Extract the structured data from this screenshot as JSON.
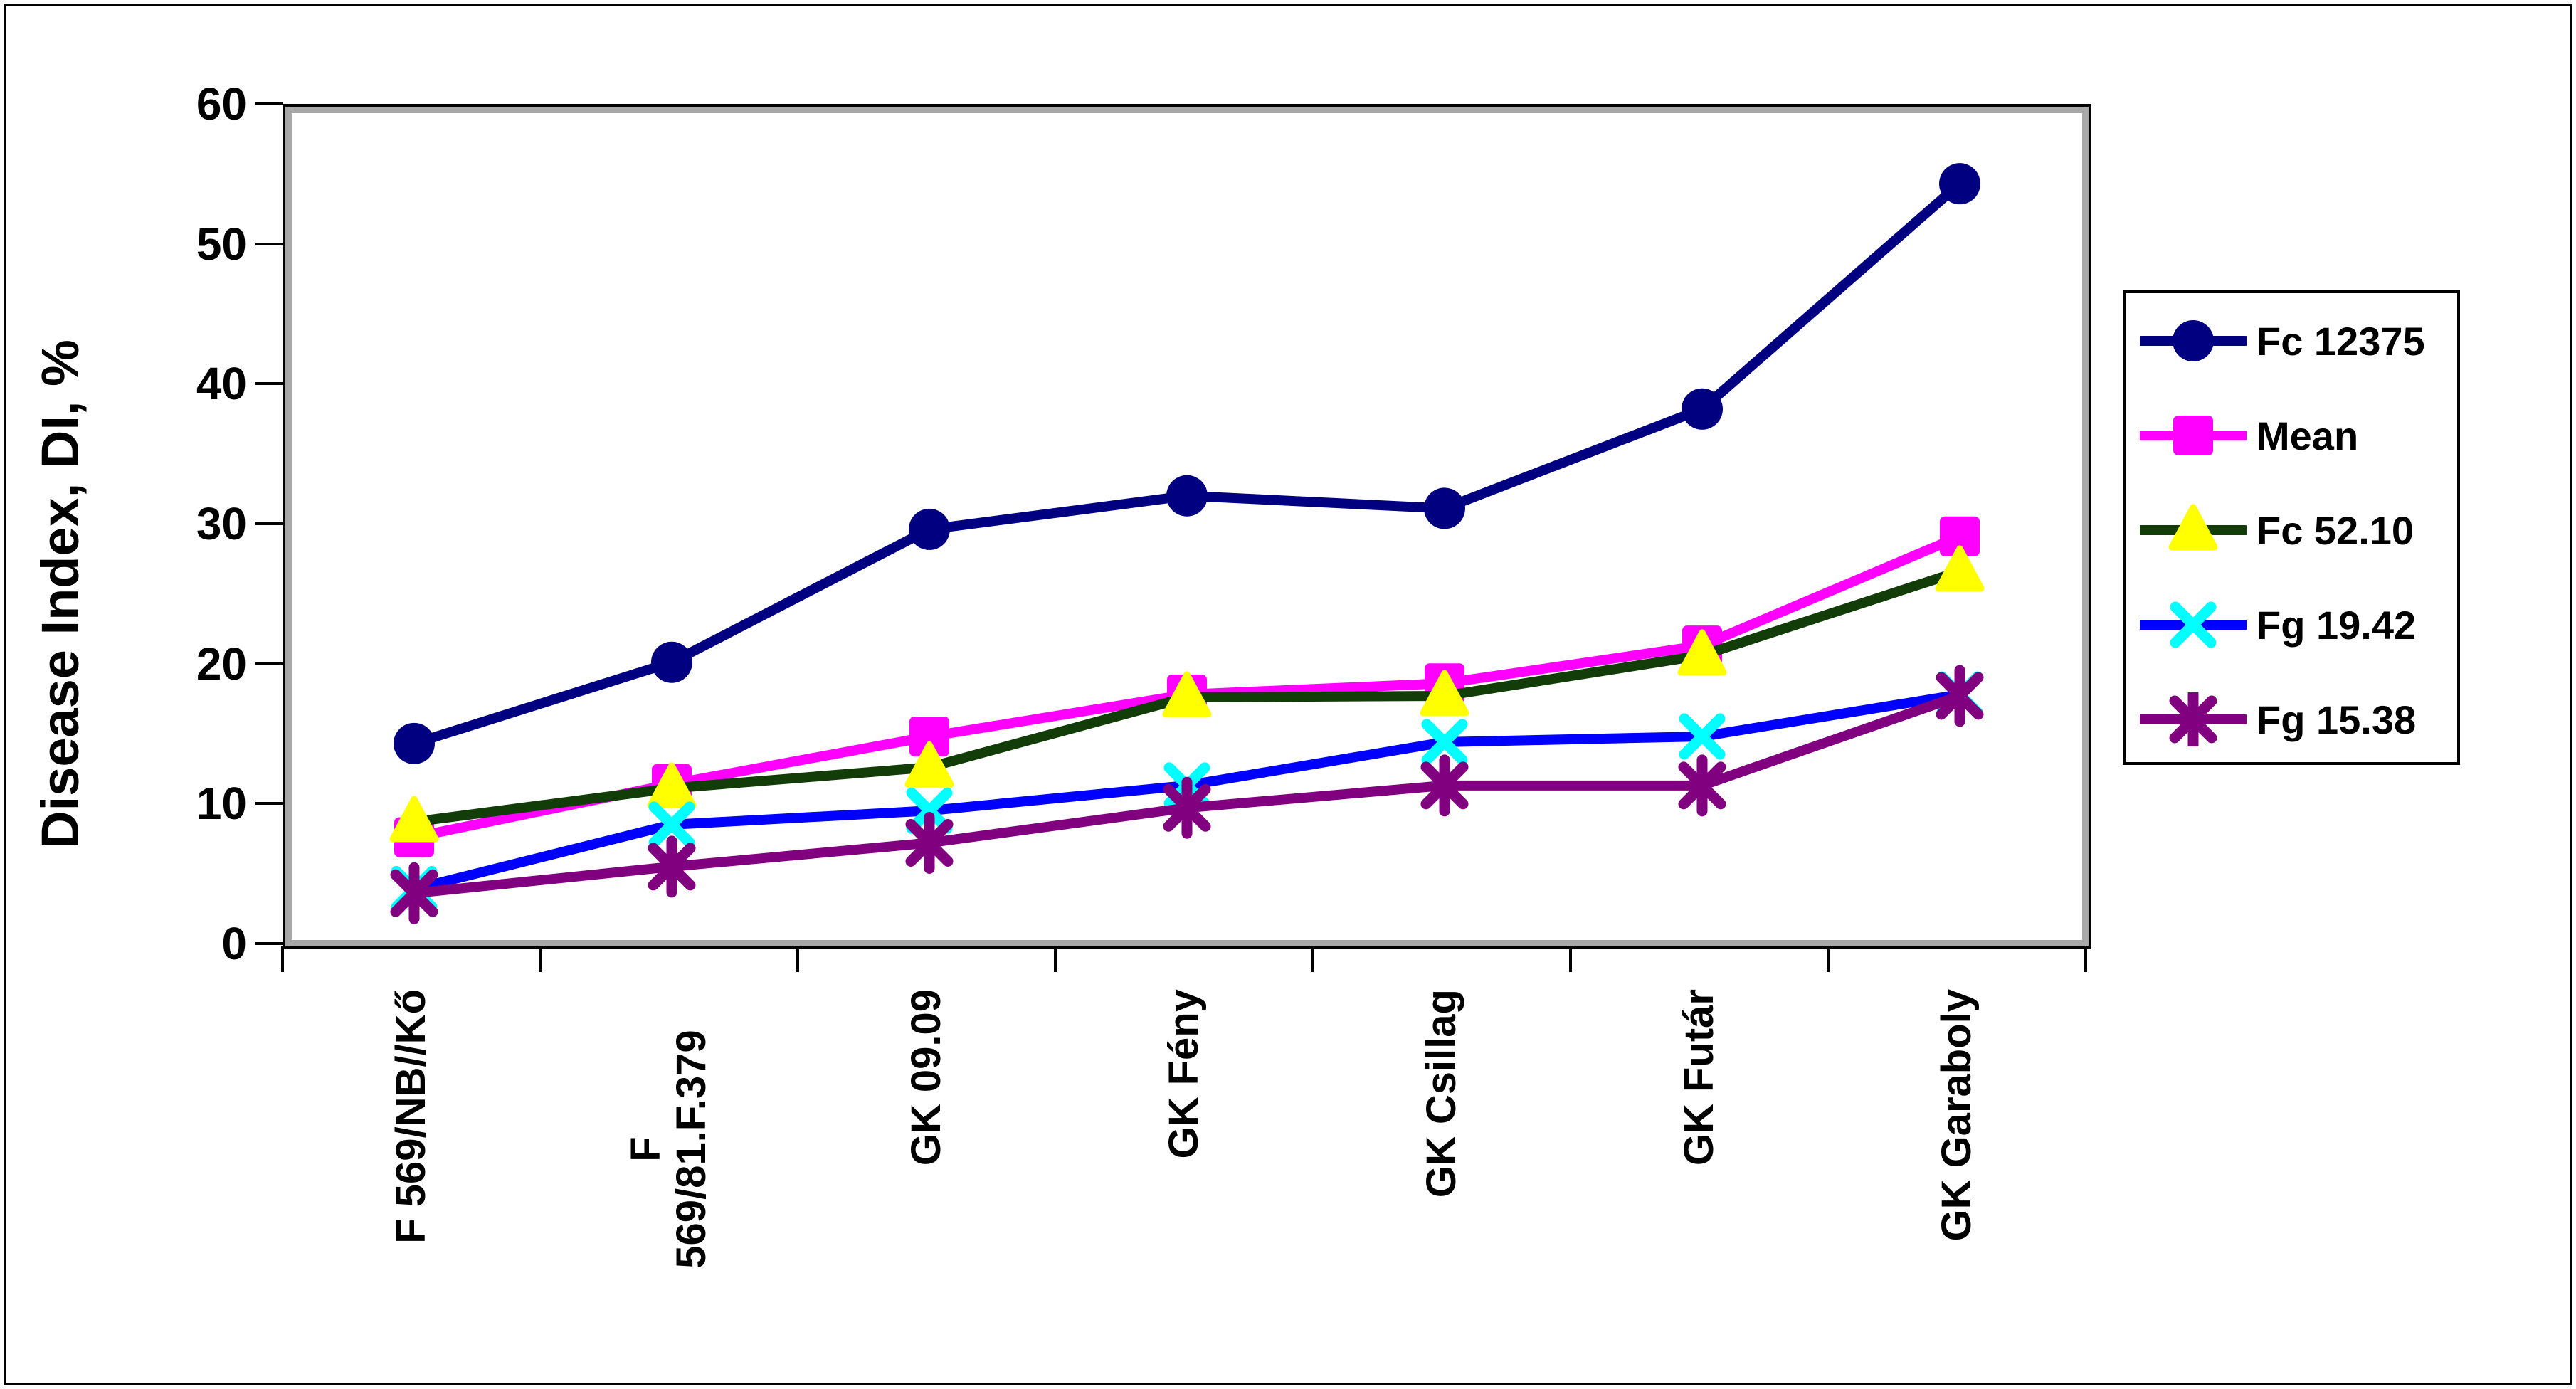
{
  "page": {
    "background": "#ffffff",
    "frame_color": "#000000"
  },
  "chart_data": {
    "type": "line",
    "title": "",
    "ylabel": "Disease Index, DI, %",
    "xlabel": "",
    "ylim": [
      0,
      60
    ],
    "yticks": [
      0,
      10,
      20,
      30,
      40,
      50,
      60
    ],
    "grid": false,
    "legend_position": "right",
    "categories": [
      "F 569/NB//Kő",
      "F\n569/81.F.379",
      "GK 09.09",
      "GK Fény",
      "GK Csillag",
      "GK Futár",
      "GK Garaboly"
    ],
    "series": [
      {
        "name": "Fc 12375",
        "marker": "circle",
        "line_color": "#000080",
        "marker_color": "#000080",
        "values": [
          14.5,
          20.3,
          29.8,
          32.2,
          31.3,
          38.4,
          54.5
        ]
      },
      {
        "name": "Mean",
        "marker": "square",
        "line_color": "#ff00ff",
        "marker_color": "#ff00ff",
        "values": [
          7.8,
          11.6,
          15.0,
          18.0,
          18.8,
          21.5,
          29.3
        ]
      },
      {
        "name": "Fc 52.10",
        "marker": "triangle",
        "line_color": "#123c08",
        "marker_color": "#ffff00",
        "values": [
          8.9,
          11.3,
          12.8,
          17.8,
          17.9,
          20.8,
          26.8
        ]
      },
      {
        "name": "Fg 19.42",
        "marker": "x",
        "line_color": "#0000ff",
        "marker_color": "#00ffff",
        "values": [
          4.1,
          8.7,
          9.7,
          11.5,
          14.6,
          15.0,
          18.0
        ]
      },
      {
        "name": "Fg 15.38",
        "marker": "star",
        "line_color": "#800080",
        "marker_color": "#800080",
        "values": [
          3.8,
          5.7,
          7.4,
          9.9,
          11.5,
          11.5,
          17.9
        ]
      }
    ]
  }
}
